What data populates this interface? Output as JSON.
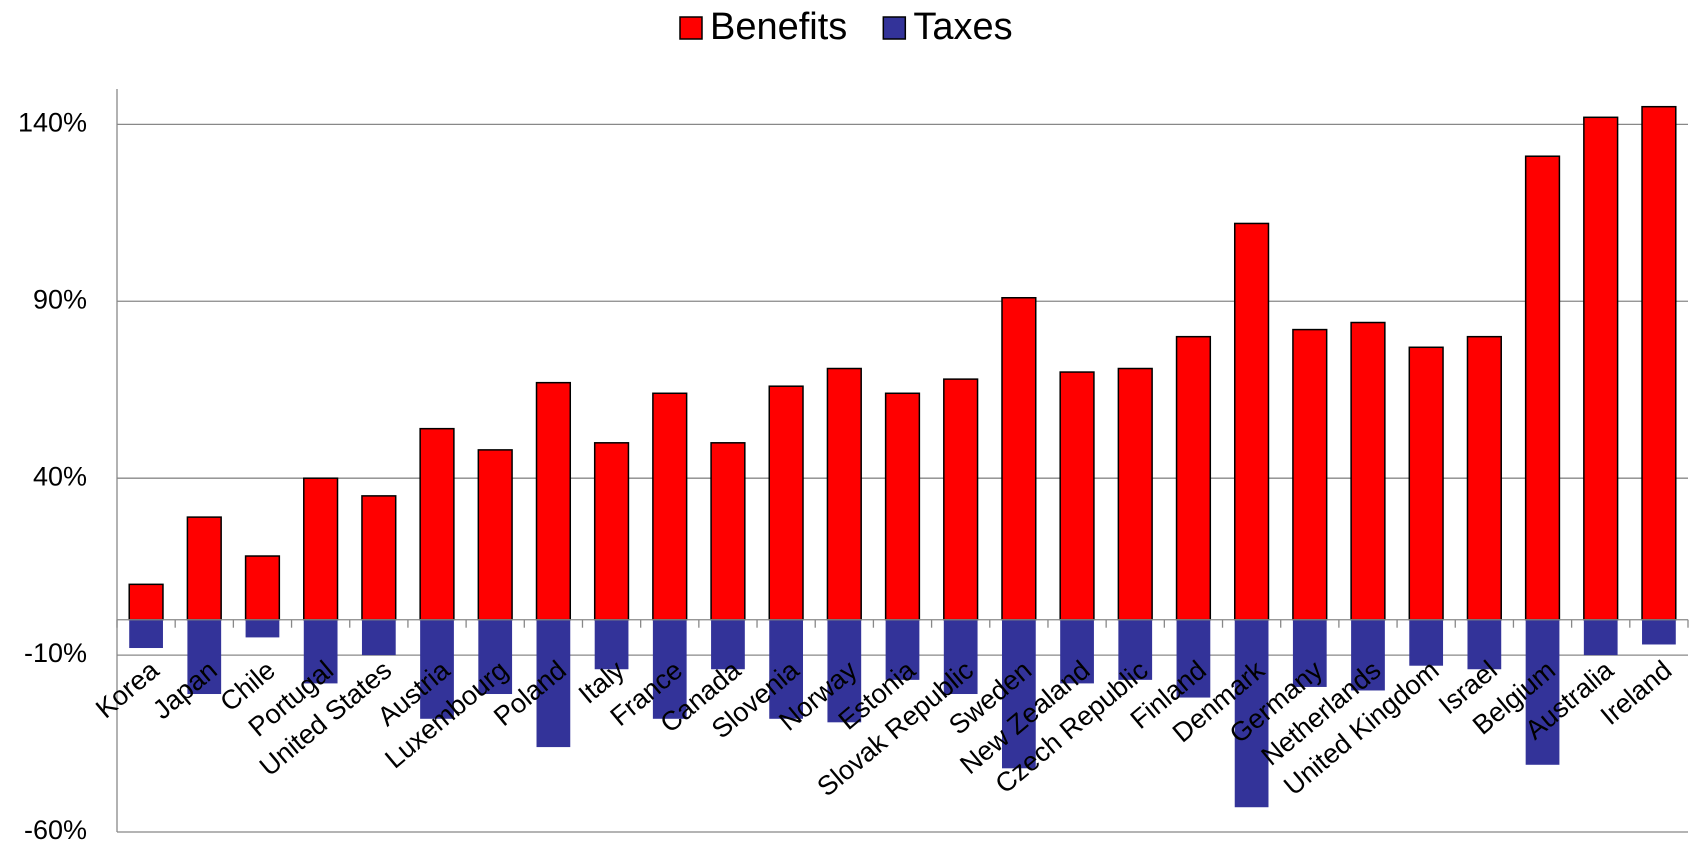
{
  "chart_data": {
    "type": "bar",
    "categories": [
      "Korea",
      "Japan",
      "Chile",
      "Portugal",
      "United States",
      "Austria",
      "Luxembourg",
      "Poland",
      "Italy",
      "France",
      "Canada",
      "Slovenia",
      "Norway",
      "Estonia",
      "Slovak Republic",
      "Sweden",
      "New Zealand",
      "Czech Republic",
      "Finland",
      "Denmark",
      "Germany",
      "Netherlands",
      "United Kingdom",
      "Israel",
      "Belgium",
      "Australia",
      "Ireland"
    ],
    "series": [
      {
        "name": "Benefits",
        "color": "#ff0000",
        "values": [
          10,
          29,
          18,
          40,
          35,
          54,
          48,
          67,
          50,
          64,
          50,
          66,
          71,
          64,
          68,
          91,
          70,
          71,
          80,
          112,
          82,
          84,
          77,
          80,
          131,
          142,
          145
        ]
      },
      {
        "name": "Taxes",
        "color": "#333399",
        "values": [
          -8,
          -21,
          -5,
          -18,
          -10,
          -28,
          -21,
          -36,
          -14,
          -28,
          -14,
          -28,
          -29,
          -17,
          -21,
          -42,
          -18,
          -17,
          -22,
          -53,
          -19,
          -20,
          -13,
          -14,
          -41,
          -10,
          -7
        ]
      }
    ],
    "ylim": [
      -60,
      150
    ],
    "yticks": [
      {
        "value": -60,
        "label": "-60%"
      },
      {
        "value": -10,
        "label": "-10%"
      },
      {
        "value": 40,
        "label": "40%"
      },
      {
        "value": 90,
        "label": "90%"
      },
      {
        "value": 140,
        "label": "140%"
      }
    ],
    "grid": true,
    "legend": "top"
  }
}
